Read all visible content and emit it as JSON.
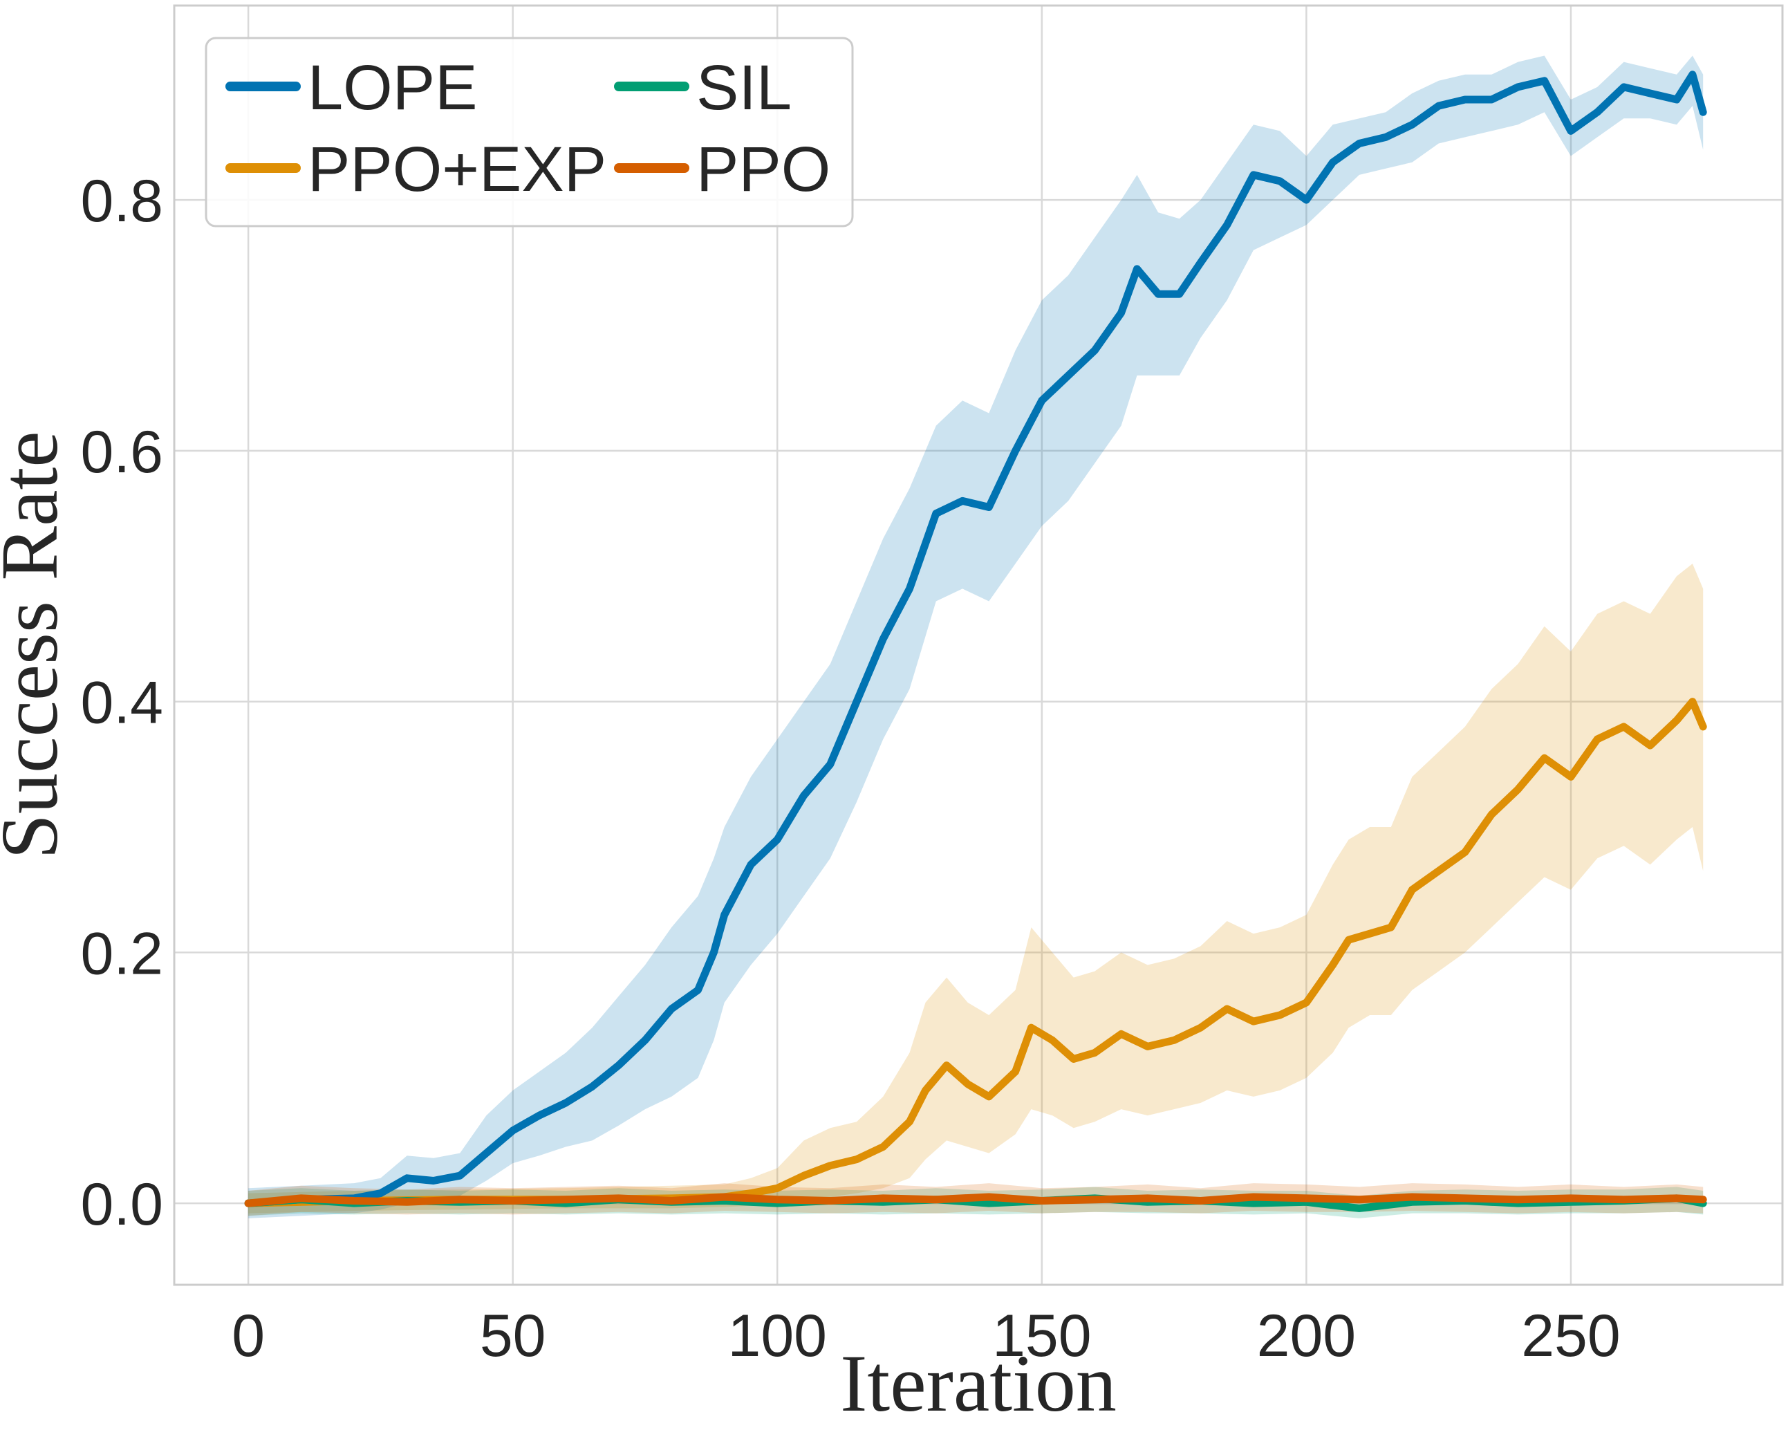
{
  "chart_data": {
    "type": "line",
    "title": "",
    "xlabel": "Iteration",
    "ylabel": "Success Rate",
    "xlim": [
      -14,
      290
    ],
    "ylim": [
      -0.065,
      0.955
    ],
    "xticks": [
      0,
      50,
      100,
      150,
      200,
      250
    ],
    "xtick_labels": [
      "0",
      "50",
      "100",
      "150",
      "200",
      "250"
    ],
    "yticks": [
      0.0,
      0.2,
      0.4,
      0.6,
      0.8
    ],
    "ytick_labels": [
      "0.0",
      "0.2",
      "0.4",
      "0.6",
      "0.8"
    ],
    "grid": true,
    "legend": "top-left",
    "series": [
      {
        "name": "LOPE",
        "color": "#0173b2",
        "band_color": "#0173b2",
        "x": [
          0,
          10,
          20,
          25,
          30,
          35,
          40,
          45,
          50,
          55,
          60,
          65,
          70,
          75,
          80,
          85,
          88,
          90,
          95,
          100,
          105,
          110,
          115,
          120,
          125,
          130,
          135,
          140,
          145,
          150,
          155,
          160,
          165,
          168,
          172,
          176,
          180,
          185,
          190,
          195,
          200,
          205,
          210,
          215,
          220,
          225,
          230,
          235,
          240,
          245,
          250,
          255,
          260,
          265,
          270,
          273,
          275
        ],
        "y": [
          0.0,
          0.003,
          0.004,
          0.008,
          0.02,
          0.018,
          0.022,
          0.04,
          0.058,
          0.07,
          0.08,
          0.093,
          0.11,
          0.13,
          0.155,
          0.17,
          0.2,
          0.23,
          0.27,
          0.29,
          0.325,
          0.35,
          0.4,
          0.45,
          0.49,
          0.55,
          0.56,
          0.555,
          0.6,
          0.64,
          0.66,
          0.68,
          0.71,
          0.745,
          0.725,
          0.725,
          0.75,
          0.78,
          0.82,
          0.815,
          0.8,
          0.83,
          0.845,
          0.85,
          0.86,
          0.875,
          0.88,
          0.88,
          0.89,
          0.895,
          0.855,
          0.87,
          0.89,
          0.885,
          0.88,
          0.9,
          0.87
        ],
        "lower": [
          -0.012,
          -0.01,
          -0.008,
          -0.005,
          0.0,
          0.002,
          0.006,
          0.018,
          0.032,
          0.038,
          0.045,
          0.05,
          0.062,
          0.075,
          0.085,
          0.1,
          0.13,
          0.16,
          0.19,
          0.215,
          0.245,
          0.275,
          0.32,
          0.37,
          0.41,
          0.48,
          0.49,
          0.48,
          0.51,
          0.54,
          0.56,
          0.59,
          0.62,
          0.66,
          0.66,
          0.66,
          0.69,
          0.72,
          0.76,
          0.77,
          0.78,
          0.8,
          0.82,
          0.825,
          0.83,
          0.845,
          0.85,
          0.855,
          0.86,
          0.87,
          0.835,
          0.85,
          0.865,
          0.865,
          0.86,
          0.875,
          0.84
        ],
        "upper": [
          0.012,
          0.014,
          0.016,
          0.02,
          0.038,
          0.036,
          0.04,
          0.07,
          0.09,
          0.105,
          0.12,
          0.14,
          0.165,
          0.19,
          0.22,
          0.245,
          0.275,
          0.3,
          0.34,
          0.37,
          0.4,
          0.43,
          0.48,
          0.53,
          0.57,
          0.62,
          0.64,
          0.63,
          0.68,
          0.72,
          0.74,
          0.77,
          0.8,
          0.82,
          0.79,
          0.785,
          0.8,
          0.83,
          0.86,
          0.855,
          0.835,
          0.86,
          0.865,
          0.87,
          0.885,
          0.895,
          0.9,
          0.9,
          0.91,
          0.915,
          0.88,
          0.89,
          0.91,
          0.905,
          0.9,
          0.915,
          0.9
        ]
      },
      {
        "name": "PPO+EXP",
        "color": "#de8f05",
        "band_color": "#de8f05",
        "x": [
          0,
          20,
          40,
          60,
          80,
          90,
          95,
          100,
          105,
          110,
          115,
          120,
          125,
          128,
          132,
          136,
          140,
          145,
          148,
          152,
          156,
          160,
          165,
          170,
          175,
          180,
          185,
          190,
          195,
          200,
          205,
          208,
          212,
          216,
          220,
          225,
          230,
          235,
          240,
          245,
          250,
          255,
          260,
          265,
          270,
          273,
          275
        ],
        "y": [
          0.0,
          0.002,
          0.003,
          0.003,
          0.004,
          0.005,
          0.008,
          0.012,
          0.022,
          0.03,
          0.035,
          0.045,
          0.065,
          0.09,
          0.11,
          0.095,
          0.085,
          0.105,
          0.14,
          0.13,
          0.115,
          0.12,
          0.135,
          0.125,
          0.13,
          0.14,
          0.155,
          0.145,
          0.15,
          0.16,
          0.19,
          0.21,
          0.215,
          0.22,
          0.25,
          0.265,
          0.28,
          0.31,
          0.33,
          0.355,
          0.34,
          0.37,
          0.38,
          0.365,
          0.385,
          0.4,
          0.38
        ],
        "lower": [
          -0.008,
          -0.006,
          -0.005,
          -0.004,
          -0.004,
          -0.003,
          -0.002,
          0.0,
          0.003,
          0.005,
          0.008,
          0.012,
          0.02,
          0.035,
          0.05,
          0.045,
          0.04,
          0.055,
          0.075,
          0.07,
          0.06,
          0.065,
          0.075,
          0.07,
          0.075,
          0.08,
          0.09,
          0.085,
          0.09,
          0.1,
          0.12,
          0.14,
          0.15,
          0.15,
          0.17,
          0.185,
          0.2,
          0.22,
          0.24,
          0.26,
          0.25,
          0.275,
          0.285,
          0.27,
          0.29,
          0.3,
          0.265
        ],
        "upper": [
          0.008,
          0.01,
          0.011,
          0.012,
          0.014,
          0.015,
          0.02,
          0.028,
          0.05,
          0.06,
          0.065,
          0.085,
          0.12,
          0.16,
          0.18,
          0.16,
          0.15,
          0.17,
          0.22,
          0.2,
          0.18,
          0.185,
          0.2,
          0.19,
          0.195,
          0.205,
          0.225,
          0.215,
          0.22,
          0.23,
          0.27,
          0.29,
          0.3,
          0.3,
          0.34,
          0.36,
          0.38,
          0.41,
          0.43,
          0.46,
          0.44,
          0.47,
          0.48,
          0.47,
          0.5,
          0.51,
          0.49
        ]
      },
      {
        "name": "SIL",
        "color": "#029e73",
        "band_color": "#029e73",
        "x": [
          0,
          10,
          20,
          30,
          40,
          50,
          60,
          70,
          80,
          90,
          100,
          110,
          120,
          130,
          140,
          150,
          160,
          170,
          180,
          190,
          200,
          210,
          220,
          230,
          240,
          250,
          260,
          270,
          275
        ],
        "y": [
          0.0,
          0.003,
          0.0,
          0.002,
          0.001,
          0.002,
          0.0,
          0.003,
          0.001,
          0.002,
          0.0,
          0.002,
          0.001,
          0.003,
          0.0,
          0.002,
          0.004,
          0.001,
          0.002,
          0.0,
          0.001,
          -0.004,
          0.001,
          0.002,
          0.0,
          0.001,
          0.002,
          0.004,
          0.0
        ],
        "lower": [
          -0.01,
          -0.008,
          -0.009,
          -0.008,
          -0.009,
          -0.008,
          -0.009,
          -0.008,
          -0.009,
          -0.008,
          -0.009,
          -0.008,
          -0.009,
          -0.008,
          -0.009,
          -0.008,
          -0.007,
          -0.008,
          -0.008,
          -0.009,
          -0.008,
          -0.012,
          -0.008,
          -0.008,
          -0.009,
          -0.008,
          -0.008,
          -0.007,
          -0.009
        ],
        "upper": [
          0.01,
          0.012,
          0.01,
          0.011,
          0.01,
          0.011,
          0.01,
          0.012,
          0.01,
          0.011,
          0.01,
          0.011,
          0.01,
          0.012,
          0.01,
          0.011,
          0.013,
          0.01,
          0.011,
          0.01,
          0.01,
          0.006,
          0.01,
          0.011,
          0.01,
          0.011,
          0.011,
          0.013,
          0.01
        ]
      },
      {
        "name": "PPO",
        "color": "#d55e00",
        "band_color": "#d55e00",
        "x": [
          0,
          10,
          20,
          30,
          40,
          50,
          60,
          70,
          80,
          90,
          100,
          110,
          120,
          130,
          140,
          150,
          160,
          170,
          180,
          190,
          200,
          210,
          220,
          230,
          240,
          250,
          260,
          270,
          275
        ],
        "y": [
          0.0,
          0.004,
          0.002,
          0.001,
          0.003,
          0.002,
          0.003,
          0.004,
          0.002,
          0.005,
          0.003,
          0.002,
          0.004,
          0.003,
          0.005,
          0.002,
          0.003,
          0.004,
          0.002,
          0.005,
          0.004,
          0.003,
          0.005,
          0.004,
          0.003,
          0.004,
          0.003,
          0.004,
          0.003
        ],
        "lower": [
          -0.01,
          -0.007,
          -0.008,
          -0.009,
          -0.008,
          -0.009,
          -0.008,
          -0.007,
          -0.008,
          -0.006,
          -0.007,
          -0.008,
          -0.007,
          -0.008,
          -0.006,
          -0.008,
          -0.007,
          -0.007,
          -0.008,
          -0.006,
          -0.007,
          -0.007,
          -0.006,
          -0.007,
          -0.008,
          -0.007,
          -0.008,
          -0.007,
          -0.008
        ],
        "upper": [
          0.01,
          0.014,
          0.012,
          0.011,
          0.013,
          0.012,
          0.013,
          0.014,
          0.012,
          0.016,
          0.013,
          0.012,
          0.015,
          0.013,
          0.016,
          0.012,
          0.013,
          0.015,
          0.012,
          0.016,
          0.015,
          0.013,
          0.016,
          0.015,
          0.013,
          0.015,
          0.013,
          0.015,
          0.013
        ]
      }
    ]
  }
}
